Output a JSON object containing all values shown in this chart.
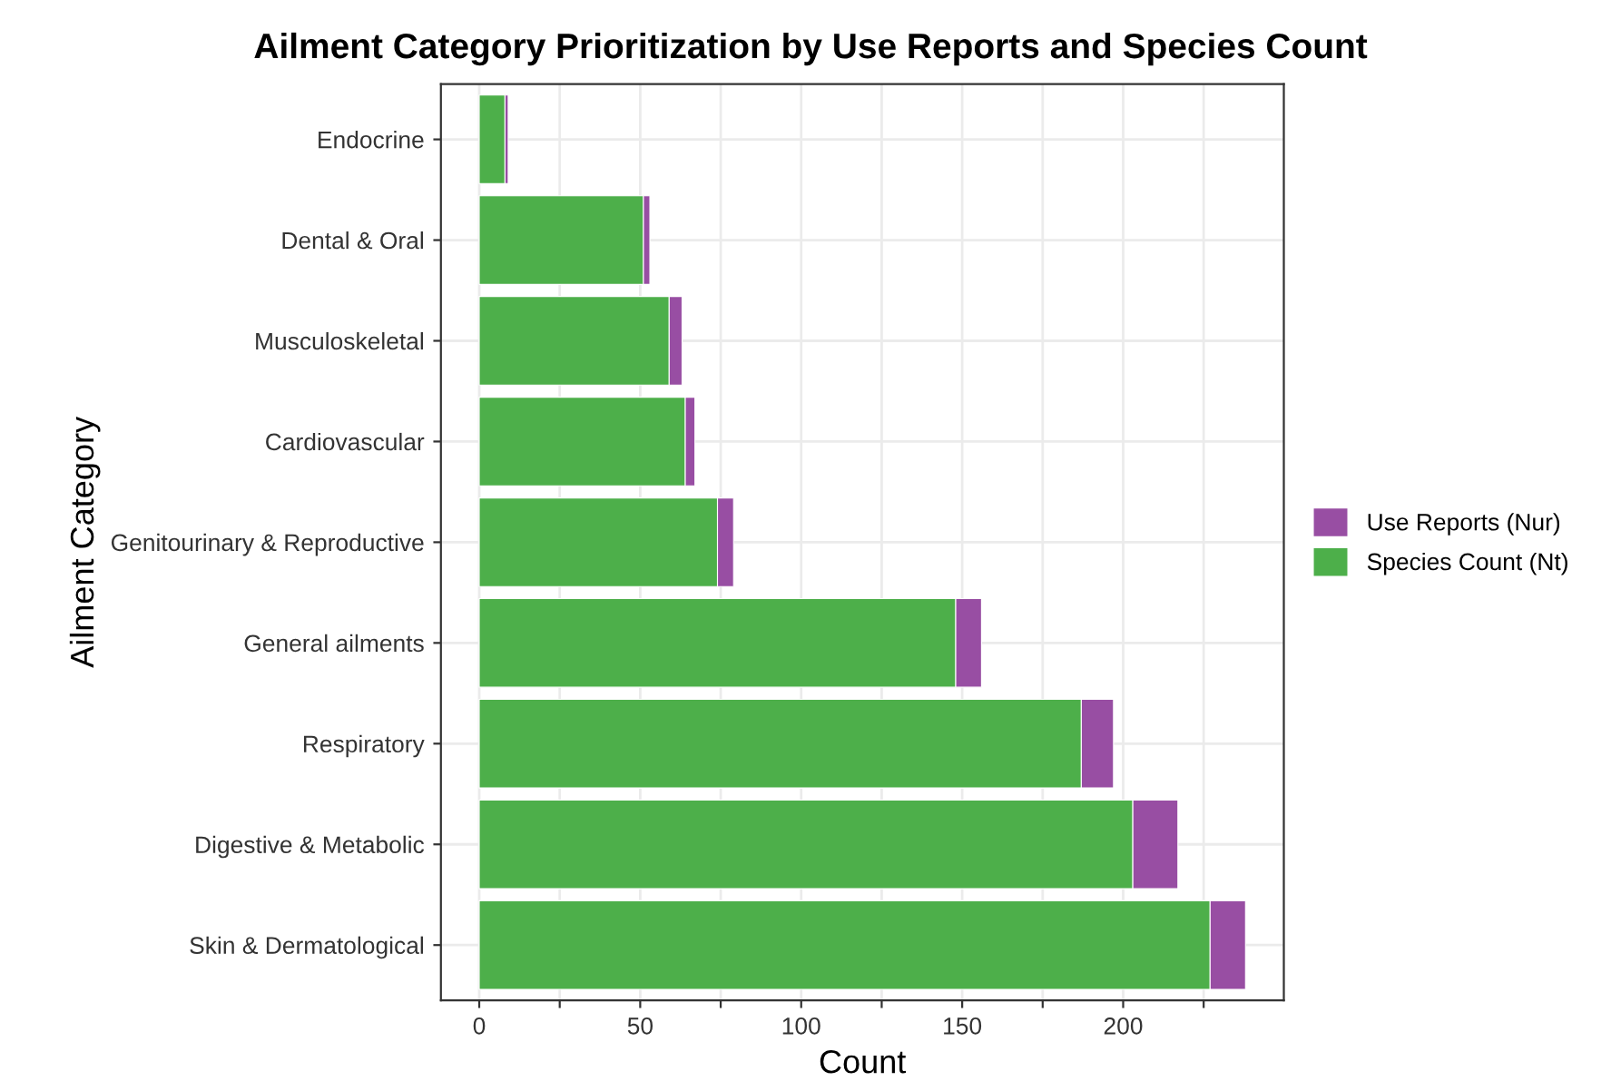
{
  "chart_data": {
    "type": "bar",
    "orientation": "horizontal",
    "stacked": true,
    "title": "Ailment Category Prioritization by Use Reports and Species Count",
    "xlabel": "Count",
    "ylabel": "Ailment Category",
    "categories": [
      "Endocrine",
      "Dental & Oral",
      "Musculoskeletal",
      "Cardiovascular",
      "Genitourinary & Reproductive",
      "General ailments",
      "Respiratory",
      "Digestive & Metabolic",
      "Skin & Dermatological"
    ],
    "series": [
      {
        "name": "Species Count (Nt)",
        "color": "#4daf4a",
        "values": [
          8,
          51,
          59,
          64,
          74,
          148,
          187,
          203,
          227
        ]
      },
      {
        "name": "Use Reports (Nur)",
        "color": "#984ea3",
        "values": [
          1,
          2,
          4,
          3,
          5,
          8,
          10,
          14,
          11
        ]
      }
    ],
    "xlim": [
      -11.9,
      249.9
    ],
    "xticks": [
      0,
      {
        "value": 25,
        "label": null
      },
      50,
      {
        "value": 75,
        "label": null
      },
      100,
      {
        "value": 125,
        "label": null
      },
      150,
      {
        "value": 175,
        "label": null
      },
      200,
      {
        "value": 225,
        "label": null
      }
    ],
    "grid": true,
    "legend": "right"
  }
}
